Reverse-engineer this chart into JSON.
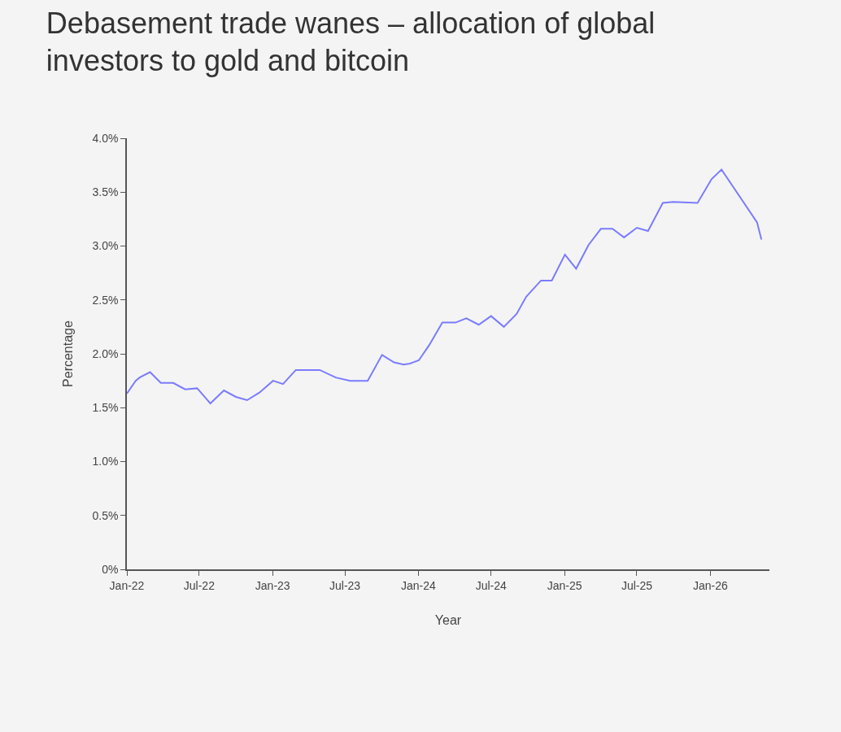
{
  "chart_data": {
    "type": "line",
    "title": "Debasement trade wanes – allocation of global investors to gold and bitcoin",
    "xlabel": "Year",
    "ylabel": "Percentage",
    "x": [
      "2022-01-01",
      "2022-01-23",
      "2022-02-02",
      "2022-02-28",
      "2022-03-27",
      "2022-04-27",
      "2022-05-27",
      "2022-06-26",
      "2022-07-29",
      "2022-09-01",
      "2022-10-01",
      "2022-10-29",
      "2022-11-29",
      "2023-01-02",
      "2023-01-27",
      "2023-02-28",
      "2023-04-29",
      "2023-06-08",
      "2023-07-14",
      "2023-08-27",
      "2023-10-02",
      "2023-11-01",
      "2023-11-25",
      "2023-12-11",
      "2024-01-02",
      "2024-01-28",
      "2024-03-01",
      "2024-04-03",
      "2024-04-30",
      "2024-05-31",
      "2024-07-01",
      "2024-08-02",
      "2024-09-03",
      "2024-09-27",
      "2024-11-03",
      "2024-11-30",
      "2025-01-02",
      "2025-01-30",
      "2025-03-02",
      "2025-04-02",
      "2025-05-01",
      "2025-05-30",
      "2025-07-01",
      "2025-07-29",
      "2025-09-04",
      "2025-09-30",
      "2025-11-30",
      "2026-01-04",
      "2026-01-29",
      "2026-04-28",
      "2026-05-09"
    ],
    "series": [
      {
        "color": "#7b7bff",
        "values": [
          1.63,
          1.75,
          1.78,
          1.83,
          1.73,
          1.73,
          1.67,
          1.68,
          1.54,
          1.66,
          1.6,
          1.57,
          1.64,
          1.75,
          1.72,
          1.85,
          1.85,
          1.78,
          1.75,
          1.75,
          1.99,
          1.92,
          1.9,
          1.91,
          1.94,
          2.08,
          2.29,
          2.29,
          2.33,
          2.27,
          2.35,
          2.25,
          2.37,
          2.53,
          2.68,
          2.68,
          2.92,
          2.79,
          3.01,
          3.16,
          3.16,
          3.08,
          3.17,
          3.14,
          3.4,
          3.41,
          3.4,
          3.62,
          3.71,
          3.22,
          3.06
        ]
      }
    ],
    "xlim": [
      "2022-01-01",
      "2026-05-29"
    ],
    "xticks": [
      {
        "value": "2022-01-01",
        "label": "Jan-22"
      },
      {
        "value": "2022-07-01",
        "label": "Jul-22"
      },
      {
        "value": "2023-01-01",
        "label": "Jan-23"
      },
      {
        "value": "2023-07-01",
        "label": "Jul-23"
      },
      {
        "value": "2024-01-01",
        "label": "Jan-24"
      },
      {
        "value": "2024-07-01",
        "label": "Jul-24"
      },
      {
        "value": "2025-01-01",
        "label": "Jan-25"
      },
      {
        "value": "2025-07-01",
        "label": "Jul-25"
      },
      {
        "value": "2026-01-01",
        "label": "Jan-26"
      }
    ],
    "ylim": [
      0,
      4
    ],
    "yticks": [
      {
        "value": 0,
        "label": "0%"
      },
      {
        "value": 0.5,
        "label": "0.5%"
      },
      {
        "value": 1,
        "label": "1.0%"
      },
      {
        "value": 1.5,
        "label": "1.5%"
      },
      {
        "value": 2,
        "label": "2.0%"
      },
      {
        "value": 2.5,
        "label": "2.5%"
      },
      {
        "value": 3,
        "label": "3.0%"
      },
      {
        "value": 3.5,
        "label": "3.5%"
      },
      {
        "value": 4,
        "label": "4.0%"
      }
    ],
    "grid": false,
    "marker": "none",
    "line_style": "solid"
  }
}
